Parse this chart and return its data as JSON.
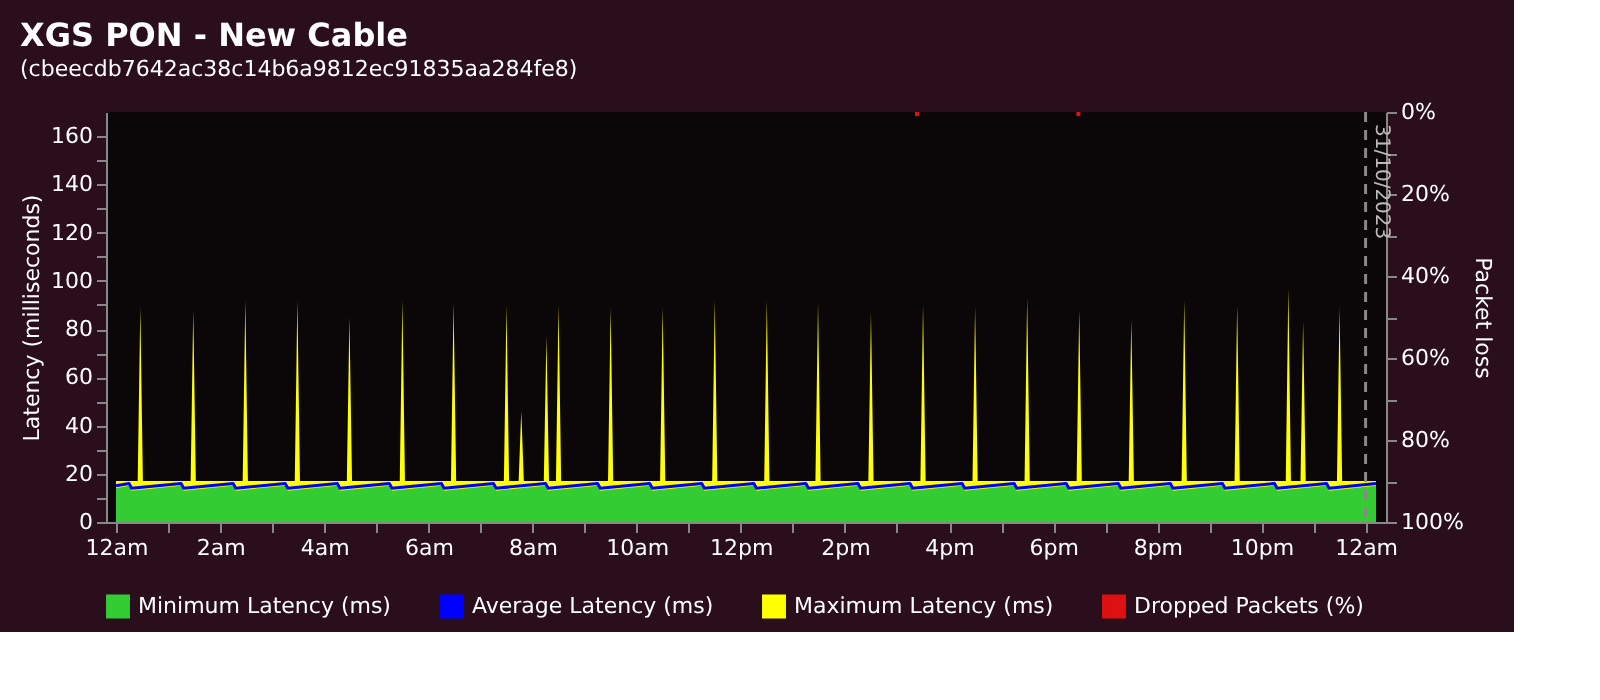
{
  "chart_data": {
    "type": "area",
    "title": "XGS PON - New Cable",
    "subtitle": "(cbeecdb7642ac38c14b6a9812ec91835aa284fe8)",
    "ylabel": "Latency (milliseconds)",
    "y2label": "Packet loss",
    "xlim": [
      "2023-10-30T00:00",
      "2023-10-31T00:12"
    ],
    "xticks": [
      {
        "value": "2023-10-30T00:00",
        "label": "12am"
      },
      {
        "value": "2023-10-30T01:00",
        "label": null
      },
      {
        "value": "2023-10-30T02:00",
        "label": "2am"
      },
      {
        "value": "2023-10-30T03:00",
        "label": null
      },
      {
        "value": "2023-10-30T04:00",
        "label": "4am"
      },
      {
        "value": "2023-10-30T05:00",
        "label": null
      },
      {
        "value": "2023-10-30T06:00",
        "label": "6am"
      },
      {
        "value": "2023-10-30T07:00",
        "label": null
      },
      {
        "value": "2023-10-30T08:00",
        "label": "8am"
      },
      {
        "value": "2023-10-30T09:00",
        "label": null
      },
      {
        "value": "2023-10-30T10:00",
        "label": "10am"
      },
      {
        "value": "2023-10-30T11:00",
        "label": null
      },
      {
        "value": "2023-10-30T12:00",
        "label": "12pm"
      },
      {
        "value": "2023-10-30T13:00",
        "label": null
      },
      {
        "value": "2023-10-30T14:00",
        "label": "2pm"
      },
      {
        "value": "2023-10-30T15:00",
        "label": null
      },
      {
        "value": "2023-10-30T16:00",
        "label": "4pm"
      },
      {
        "value": "2023-10-30T17:00",
        "label": null
      },
      {
        "value": "2023-10-30T18:00",
        "label": "6pm"
      },
      {
        "value": "2023-10-30T19:00",
        "label": null
      },
      {
        "value": "2023-10-30T20:00",
        "label": "8pm"
      },
      {
        "value": "2023-10-30T21:00",
        "label": null
      },
      {
        "value": "2023-10-30T22:00",
        "label": "10pm"
      },
      {
        "value": "2023-10-30T23:00",
        "label": null
      },
      {
        "value": "2023-10-31T00:00",
        "label": "12am"
      }
    ],
    "ylim": [
      0,
      170
    ],
    "yticks": [
      0,
      {
        "value": 10,
        "label": null
      },
      20,
      {
        "value": 30,
        "label": null
      },
      40,
      {
        "value": 50,
        "label": null
      },
      60,
      {
        "value": 70,
        "label": null
      },
      80,
      {
        "value": 90,
        "label": null
      },
      100,
      {
        "value": 110,
        "label": null
      },
      120,
      {
        "value": 130,
        "label": null
      },
      140,
      {
        "value": 150,
        "label": null
      },
      160
    ],
    "y2lim": [
      100,
      0
    ],
    "y2ticks": [
      {
        "value": 0,
        "label": "0%"
      },
      {
        "value": 10,
        "label": null
      },
      {
        "value": 20,
        "label": "20%"
      },
      {
        "value": 30,
        "label": null
      },
      {
        "value": 40,
        "label": "40%"
      },
      {
        "value": 50,
        "label": null
      },
      {
        "value": 60,
        "label": "60%"
      },
      {
        "value": 70,
        "label": null
      },
      {
        "value": 80,
        "label": "80%"
      },
      {
        "value": 90,
        "label": null
      },
      {
        "value": 100,
        "label": "100%"
      }
    ],
    "legend": "bottom",
    "ref_lines": [
      {
        "axis": "x",
        "value": "2023-10-31T00:00",
        "label": "31/10/2023",
        "color": "#888888",
        "line_style": "dashed"
      }
    ],
    "series": [
      {
        "name": "Minimum Latency (ms)",
        "color": "#33cc33",
        "x": [
          "2023-10-30T00:00",
          "2023-10-30T00:15",
          "2023-10-30T00:18",
          "2023-10-30T01:15",
          "2023-10-30T01:18",
          "2023-10-30T02:15",
          "2023-10-30T02:18",
          "2023-10-30T03:15",
          "2023-10-30T03:18",
          "2023-10-30T04:15",
          "2023-10-30T04:18",
          "2023-10-30T05:15",
          "2023-10-30T05:18",
          "2023-10-30T06:15",
          "2023-10-30T06:18",
          "2023-10-30T07:15",
          "2023-10-30T07:18",
          "2023-10-30T08:15",
          "2023-10-30T08:18",
          "2023-10-30T09:15",
          "2023-10-30T09:18",
          "2023-10-30T10:15",
          "2023-10-30T10:18",
          "2023-10-30T11:15",
          "2023-10-30T11:18",
          "2023-10-30T12:15",
          "2023-10-30T12:18",
          "2023-10-30T13:15",
          "2023-10-30T13:18",
          "2023-10-30T14:15",
          "2023-10-30T14:18",
          "2023-10-30T15:15",
          "2023-10-30T15:18",
          "2023-10-30T16:15",
          "2023-10-30T16:18",
          "2023-10-30T17:15",
          "2023-10-30T17:18",
          "2023-10-30T18:15",
          "2023-10-30T18:18",
          "2023-10-30T19:15",
          "2023-10-30T19:18",
          "2023-10-30T20:15",
          "2023-10-30T20:18",
          "2023-10-30T21:15",
          "2023-10-30T21:18",
          "2023-10-30T22:15",
          "2023-10-30T22:18",
          "2023-10-30T23:15",
          "2023-10-30T23:18",
          "2023-10-31T00:12"
        ],
        "values": [
          14,
          15,
          13,
          15,
          13,
          15,
          13,
          15,
          13,
          15,
          13,
          15,
          13,
          15,
          13,
          15,
          13,
          15,
          13,
          15,
          13,
          15,
          13,
          15,
          13,
          15,
          13,
          15,
          13,
          15,
          13,
          15,
          13,
          15,
          13,
          15,
          13,
          15,
          13,
          15,
          13,
          15,
          13,
          15,
          13,
          15,
          13,
          15,
          13,
          15
        ]
      },
      {
        "name": "Average Latency (ms)",
        "color": "#0000ff",
        "type": "line",
        "x": [
          "2023-10-30T00:00",
          "2023-10-30T00:15",
          "2023-10-30T00:18",
          "2023-10-30T01:15",
          "2023-10-30T01:18",
          "2023-10-30T02:15",
          "2023-10-30T02:18",
          "2023-10-30T03:15",
          "2023-10-30T03:18",
          "2023-10-30T04:15",
          "2023-10-30T04:18",
          "2023-10-30T05:15",
          "2023-10-30T05:18",
          "2023-10-30T06:15",
          "2023-10-30T06:18",
          "2023-10-30T07:15",
          "2023-10-30T07:18",
          "2023-10-30T08:15",
          "2023-10-30T08:18",
          "2023-10-30T09:15",
          "2023-10-30T09:18",
          "2023-10-30T10:15",
          "2023-10-30T10:18",
          "2023-10-30T11:15",
          "2023-10-30T11:18",
          "2023-10-30T12:15",
          "2023-10-30T12:18",
          "2023-10-30T13:15",
          "2023-10-30T13:18",
          "2023-10-30T14:15",
          "2023-10-30T14:18",
          "2023-10-30T15:15",
          "2023-10-30T15:18",
          "2023-10-30T16:15",
          "2023-10-30T16:18",
          "2023-10-30T17:15",
          "2023-10-30T17:18",
          "2023-10-30T18:15",
          "2023-10-30T18:18",
          "2023-10-30T19:15",
          "2023-10-30T19:18",
          "2023-10-30T20:15",
          "2023-10-30T20:18",
          "2023-10-30T21:15",
          "2023-10-30T21:18",
          "2023-10-30T22:15",
          "2023-10-30T22:18",
          "2023-10-30T23:15",
          "2023-10-30T23:18",
          "2023-10-31T00:12"
        ],
        "values": [
          15,
          16,
          14,
          16,
          14,
          16,
          14,
          16,
          14,
          16,
          14,
          16,
          14,
          16,
          14,
          16,
          14,
          16,
          14,
          16,
          14,
          16,
          14,
          16,
          14,
          16,
          14,
          16,
          14,
          16,
          14,
          16,
          14,
          16,
          14,
          16,
          14,
          16,
          14,
          16,
          14,
          16,
          14,
          16,
          14,
          16,
          14,
          16,
          14,
          16
        ]
      },
      {
        "name": "Maximum Latency (ms)",
        "color": "#ffff00",
        "x": [
          "2023-10-30T00:00",
          "2023-10-30T00:25",
          "2023-10-30T00:28",
          "2023-10-30T00:31",
          "2023-10-30T01:26",
          "2023-10-30T01:29",
          "2023-10-30T01:32",
          "2023-10-30T02:26",
          "2023-10-30T02:29",
          "2023-10-30T02:32",
          "2023-10-30T03:26",
          "2023-10-30T03:29",
          "2023-10-30T03:32",
          "2023-10-30T04:26",
          "2023-10-30T04:29",
          "2023-10-30T04:32",
          "2023-10-30T05:27",
          "2023-10-30T05:30",
          "2023-10-30T05:33",
          "2023-10-30T06:26",
          "2023-10-30T06:29",
          "2023-10-30T06:32",
          "2023-10-30T07:27",
          "2023-10-30T07:30",
          "2023-10-30T07:33",
          "2023-10-30T07:44",
          "2023-10-30T07:47",
          "2023-10-30T07:50",
          "2023-10-30T08:13",
          "2023-10-30T08:16",
          "2023-10-30T08:19",
          "2023-10-30T08:27",
          "2023-10-30T08:30",
          "2023-10-30T08:33",
          "2023-10-30T09:27",
          "2023-10-30T09:30",
          "2023-10-30T09:33",
          "2023-10-30T10:27",
          "2023-10-30T10:30",
          "2023-10-30T10:33",
          "2023-10-30T11:27",
          "2023-10-30T11:30",
          "2023-10-30T11:33",
          "2023-10-30T12:27",
          "2023-10-30T12:30",
          "2023-10-30T12:33",
          "2023-10-30T13:26",
          "2023-10-30T13:29",
          "2023-10-30T13:32",
          "2023-10-30T14:27",
          "2023-10-30T14:30",
          "2023-10-30T14:33",
          "2023-10-30T15:27",
          "2023-10-30T15:30",
          "2023-10-30T15:33",
          "2023-10-30T16:27",
          "2023-10-30T16:30",
          "2023-10-30T16:33",
          "2023-10-30T17:27",
          "2023-10-30T17:30",
          "2023-10-30T17:33",
          "2023-10-30T18:27",
          "2023-10-30T18:30",
          "2023-10-30T18:33",
          "2023-10-30T19:27",
          "2023-10-30T19:30",
          "2023-10-30T19:33",
          "2023-10-30T20:28",
          "2023-10-30T20:31",
          "2023-10-30T20:34",
          "2023-10-30T21:29",
          "2023-10-30T21:32",
          "2023-10-30T21:35",
          "2023-10-30T22:28",
          "2023-10-30T22:31",
          "2023-10-30T22:34",
          "2023-10-30T22:45",
          "2023-10-30T22:48",
          "2023-10-30T22:51",
          "2023-10-30T23:27",
          "2023-10-30T23:30",
          "2023-10-30T23:33",
          "2023-10-31T00:12"
        ],
        "values": [
          17,
          17,
          89,
          17,
          17,
          88,
          17,
          17,
          92,
          17,
          17,
          92,
          17,
          17,
          85,
          17,
          17,
          92,
          17,
          17,
          91,
          17,
          17,
          90,
          17,
          17,
          46,
          17,
          17,
          77,
          17,
          17,
          90,
          17,
          17,
          89,
          17,
          17,
          89,
          17,
          17,
          92,
          17,
          17,
          92,
          17,
          17,
          91,
          17,
          17,
          87,
          17,
          17,
          90,
          17,
          17,
          89,
          17,
          17,
          93,
          17,
          17,
          88,
          17,
          17,
          84,
          17,
          17,
          92,
          17,
          17,
          90,
          17,
          17,
          97,
          17,
          17,
          83,
          17,
          17,
          89,
          17,
          17
        ]
      },
      {
        "name": "Dropped Packets (%)",
        "color": "#dd1111",
        "type": "bar",
        "axis": "y2",
        "x": [
          "2023-10-30T15:23",
          "2023-10-30T18:29"
        ],
        "values": [
          1,
          1
        ]
      }
    ]
  }
}
